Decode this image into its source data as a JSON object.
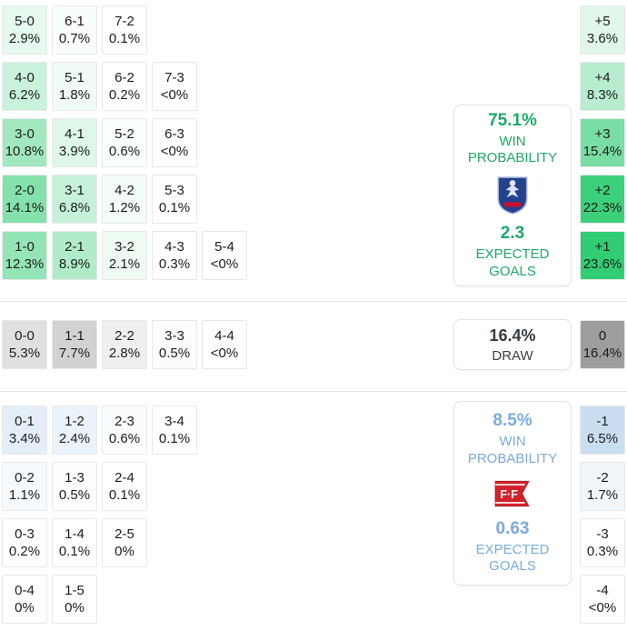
{
  "colors": {
    "home_base_rgb": "46,204,113",
    "draw_base_rgb": "125,125,125",
    "away_base_rgb": "91,155,213",
    "home_text": "#1fa968",
    "away_text": "#7babdd",
    "cell_border": "#e8e8e8",
    "divider": "#e2e2e2",
    "home_crest_blue": "#24428c",
    "home_crest_red": "#c8102e",
    "away_crest_red": "#d2232a"
  },
  "chart_data": {
    "type": "heatmap",
    "title": "Correct score probability matrix with goal-difference column",
    "legend_position": "none",
    "sections": {
      "home": {
        "rows": [
          {
            "cells": [
              {
                "score": "5-0",
                "pct": "2.9%",
                "v": 2.9
              },
              {
                "score": "6-1",
                "pct": "0.7%",
                "v": 0.7
              },
              {
                "score": "7-2",
                "pct": "0.1%",
                "v": 0.1
              }
            ],
            "diff": {
              "label": "+5",
              "pct": "3.6%",
              "v": 3.6
            }
          },
          {
            "cells": [
              {
                "score": "4-0",
                "pct": "6.2%",
                "v": 6.2
              },
              {
                "score": "5-1",
                "pct": "1.8%",
                "v": 1.8
              },
              {
                "score": "6-2",
                "pct": "0.2%",
                "v": 0.2
              },
              {
                "score": "7-3",
                "pct": "<0%",
                "v": 0.03
              }
            ],
            "diff": {
              "label": "+4",
              "pct": "8.3%",
              "v": 8.3
            }
          },
          {
            "cells": [
              {
                "score": "3-0",
                "pct": "10.8%",
                "v": 10.8
              },
              {
                "score": "4-1",
                "pct": "3.9%",
                "v": 3.9
              },
              {
                "score": "5-2",
                "pct": "0.6%",
                "v": 0.6
              },
              {
                "score": "6-3",
                "pct": "<0%",
                "v": 0.03
              }
            ],
            "diff": {
              "label": "+3",
              "pct": "15.4%",
              "v": 15.4
            }
          },
          {
            "cells": [
              {
                "score": "2-0",
                "pct": "14.1%",
                "v": 14.1
              },
              {
                "score": "3-1",
                "pct": "6.8%",
                "v": 6.8
              },
              {
                "score": "4-2",
                "pct": "1.2%",
                "v": 1.2
              },
              {
                "score": "5-3",
                "pct": "0.1%",
                "v": 0.1
              }
            ],
            "diff": {
              "label": "+2",
              "pct": "22.3%",
              "v": 22.3
            }
          },
          {
            "cells": [
              {
                "score": "1-0",
                "pct": "12.3%",
                "v": 12.3
              },
              {
                "score": "2-1",
                "pct": "8.9%",
                "v": 8.9
              },
              {
                "score": "3-2",
                "pct": "2.1%",
                "v": 2.1
              },
              {
                "score": "4-3",
                "pct": "0.3%",
                "v": 0.3
              },
              {
                "score": "5-4",
                "pct": "<0%",
                "v": 0.03
              }
            ],
            "diff": {
              "label": "+1",
              "pct": "23.6%",
              "v": 23.6
            }
          }
        ]
      },
      "draw": {
        "rows": [
          {
            "cells": [
              {
                "score": "0-0",
                "pct": "5.3%",
                "v": 5.3
              },
              {
                "score": "1-1",
                "pct": "7.7%",
                "v": 7.7
              },
              {
                "score": "2-2",
                "pct": "2.8%",
                "v": 2.8
              },
              {
                "score": "3-3",
                "pct": "0.5%",
                "v": 0.5
              },
              {
                "score": "4-4",
                "pct": "<0%",
                "v": 0.03
              }
            ],
            "diff": {
              "label": "0",
              "pct": "16.4%",
              "v": 16.4
            }
          }
        ]
      },
      "away": {
        "rows": [
          {
            "cells": [
              {
                "score": "0-1",
                "pct": "3.4%",
                "v": 3.4
              },
              {
                "score": "1-2",
                "pct": "2.4%",
                "v": 2.4
              },
              {
                "score": "2-3",
                "pct": "0.6%",
                "v": 0.6
              },
              {
                "score": "3-4",
                "pct": "0.1%",
                "v": 0.1
              }
            ],
            "diff": {
              "label": "-1",
              "pct": "6.5%",
              "v": 6.5
            }
          },
          {
            "cells": [
              {
                "score": "0-2",
                "pct": "1.1%",
                "v": 1.1
              },
              {
                "score": "1-3",
                "pct": "0.5%",
                "v": 0.5
              },
              {
                "score": "2-4",
                "pct": "0.1%",
                "v": 0.1
              }
            ],
            "diff": {
              "label": "-2",
              "pct": "1.7%",
              "v": 1.7
            }
          },
          {
            "cells": [
              {
                "score": "0-3",
                "pct": "0.2%",
                "v": 0.2
              },
              {
                "score": "1-4",
                "pct": "0.1%",
                "v": 0.1
              },
              {
                "score": "2-5",
                "pct": "0%",
                "v": 0
              }
            ],
            "diff": {
              "label": "-3",
              "pct": "0.3%",
              "v": 0.3
            }
          },
          {
            "cells": [
              {
                "score": "0-4",
                "pct": "0%",
                "v": 0
              },
              {
                "score": "1-5",
                "pct": "0%",
                "v": 0
              }
            ],
            "diff": {
              "label": "-4",
              "pct": "<0%",
              "v": 0.03
            }
          }
        ]
      }
    }
  },
  "panels": {
    "home": {
      "win_pct": "75.1%",
      "win_label": "WIN PROBABILITY",
      "expected_goals": "2.3",
      "expected_goals_label": "EXPECTED GOALS"
    },
    "draw": {
      "pct": "16.4%",
      "label": "DRAW"
    },
    "away": {
      "win_pct": "8.5%",
      "win_label": "WIN PROBABILITY",
      "expected_goals": "0.63",
      "expected_goals_label": "EXPECTED GOALS"
    }
  }
}
